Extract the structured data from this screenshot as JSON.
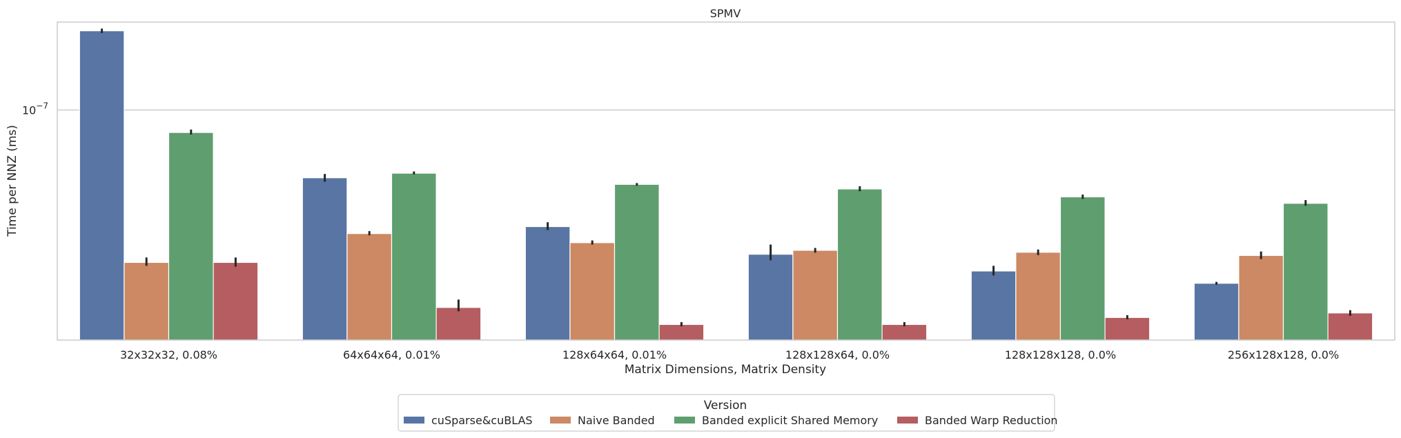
{
  "chart_data": {
    "type": "bar",
    "title": "SPMV",
    "xlabel": "Matrix Dimensions, Matrix Density",
    "ylabel": "Time per NNZ (ms)",
    "yscale": "log",
    "ylim": [
      2.7e-08,
      1.65e-07
    ],
    "yticks": [
      {
        "value": 1e-07,
        "base": "10",
        "exp": "−7"
      }
    ],
    "grid": "horizontal",
    "categories": [
      "32x32x32, 0.08%",
      "64x64x64, 0.01%",
      "128x64x64, 0.01%",
      "128x128x64, 0.0%",
      "128x128x128, 0.0%",
      "256x128x128, 0.0%"
    ],
    "series": [
      {
        "name": "cuSparse&cuBLAS",
        "color": "#5875a4",
        "values": [
          1.57e-07,
          6.8e-08,
          5.15e-08,
          4.4e-08,
          4e-08,
          3.73e-08
        ],
        "err": [
          [
            1.55e-07,
            1.59e-07
          ],
          [
            6.65e-08,
            6.95e-08
          ],
          [
            5.05e-08,
            5.28e-08
          ],
          [
            4.25e-08,
            4.65e-08
          ],
          [
            3.9e-08,
            4.12e-08
          ],
          [
            3.7e-08,
            3.76e-08
          ]
        ]
      },
      {
        "name": "Naive Banded",
        "color": "#cc8963",
        "values": [
          4.2e-08,
          4.95e-08,
          4.7e-08,
          4.5e-08,
          4.45e-08,
          4.37e-08
        ],
        "err": [
          [
            4.12e-08,
            4.32e-08
          ],
          [
            4.9e-08,
            5.02e-08
          ],
          [
            4.65e-08,
            4.76e-08
          ],
          [
            4.44e-08,
            4.56e-08
          ],
          [
            4.38e-08,
            4.52e-08
          ],
          [
            4.28e-08,
            4.47e-08
          ]
        ]
      },
      {
        "name": "Banded explicit Shared Memory",
        "color": "#5f9e6e",
        "values": [
          8.8e-08,
          6.98e-08,
          6.55e-08,
          6.38e-08,
          6.1e-08,
          5.88e-08
        ],
        "err": [
          [
            8.7e-08,
            8.95e-08
          ],
          [
            6.93e-08,
            7.05e-08
          ],
          [
            6.5e-08,
            6.6e-08
          ],
          [
            6.3e-08,
            6.48e-08
          ],
          [
            6.03e-08,
            6.18e-08
          ],
          [
            5.8e-08,
            5.99e-08
          ]
        ]
      },
      {
        "name": "Banded Warp Reduction",
        "color": "#b55d60",
        "values": [
          4.2e-08,
          3.25e-08,
          2.95e-08,
          2.95e-08,
          3.07e-08,
          3.15e-08
        ],
        "err": [
          [
            4.1e-08,
            4.32e-08
          ],
          [
            3.18e-08,
            3.4e-08
          ],
          [
            2.92e-08,
            2.99e-08
          ],
          [
            2.92e-08,
            2.99e-08
          ],
          [
            3.04e-08,
            3.11e-08
          ],
          [
            3.1e-08,
            3.2e-08
          ]
        ]
      }
    ],
    "legend": {
      "title": "Version",
      "placement": "bottom-center"
    }
  }
}
